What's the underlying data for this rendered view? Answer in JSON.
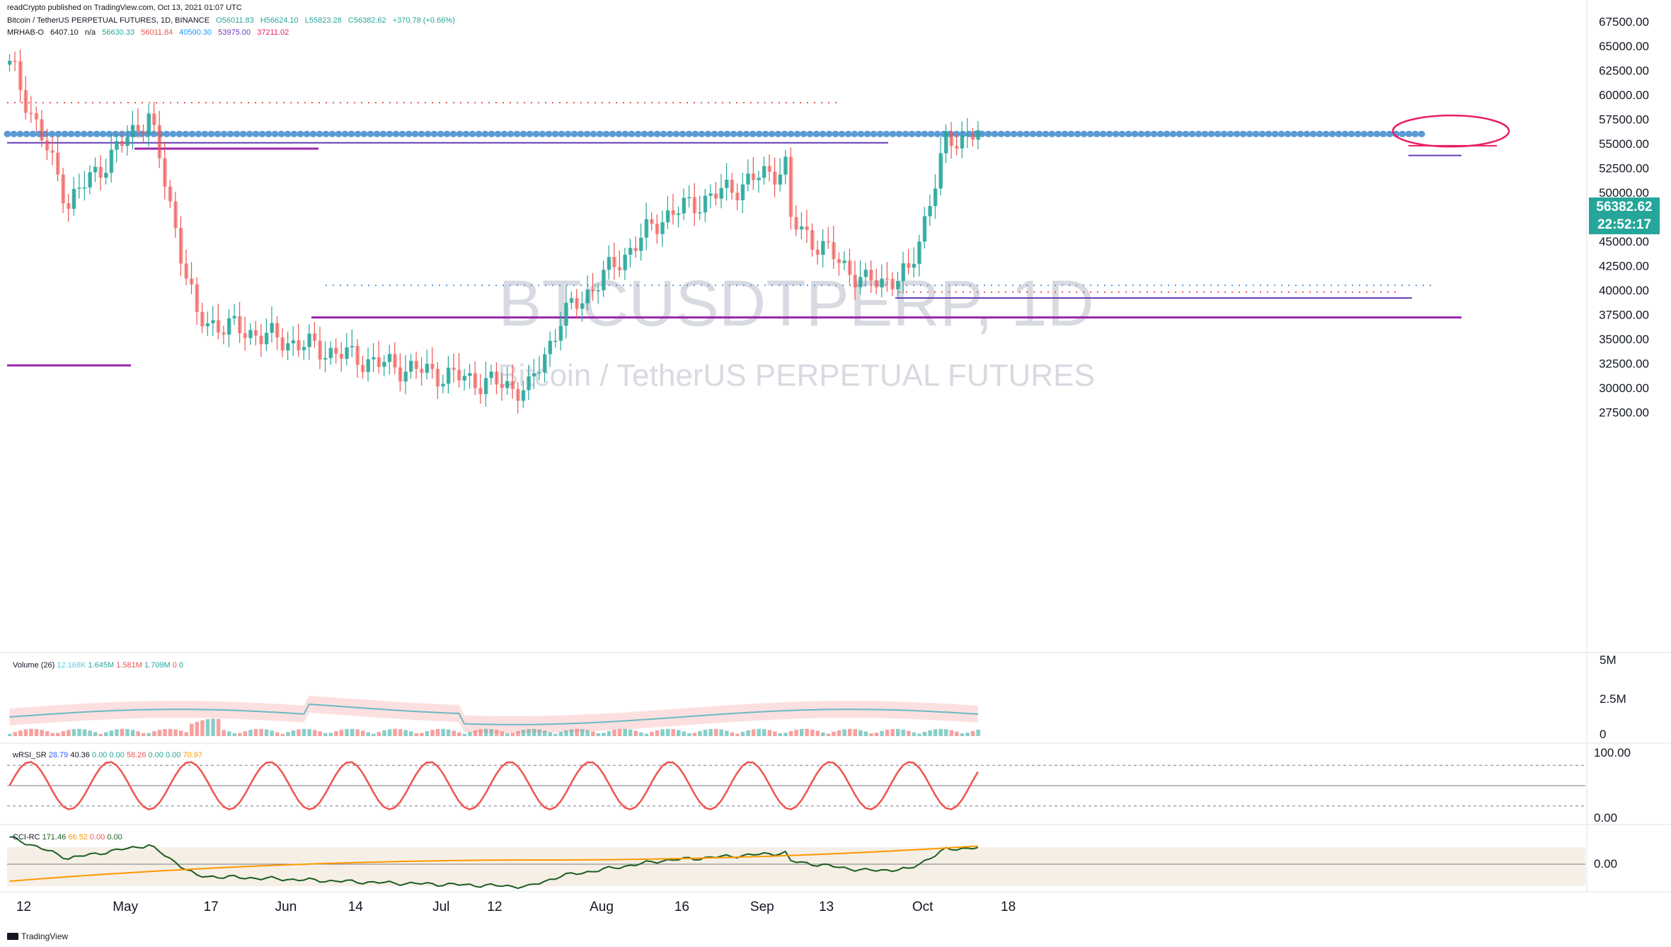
{
  "header": {
    "published": "readCrypto published on TradingView.com, Oct 13, 2021 01:07 UTC",
    "symbol_line": "Bitcoin / TetherUS PERPETUAL FUTURES, 1D, BINANCE",
    "ohlc": {
      "o": "O56011.83",
      "h": "H56624.10",
      "l": "L55823.28",
      "c": "C56382.62",
      "chg": "+370.78 (+0.66%)"
    },
    "indicator": {
      "name": "MRHAB-O",
      "v1": "6407.10",
      "v2": "n/a",
      "v3": "56630.33",
      "v4": "56011.84",
      "v5": "40500.30",
      "v6": "53975.00",
      "v7": "37211.02"
    }
  },
  "watermark": {
    "ticker": "BTCUSDTPERP, 1D",
    "name": "Bitcoin / TetherUS PERPETUAL FUTURES"
  },
  "price_label": {
    "price": "56382.62",
    "countdown": "22:52:17"
  },
  "panels": {
    "volume": {
      "name": "Volume (26)",
      "v1": "12.168K",
      "v2": "1.645M",
      "v3": "1.581M",
      "v4": "1.709M",
      "v5": "0",
      "v6": "0",
      "ticks": [
        "5M",
        "2.5M",
        "0"
      ]
    },
    "rsi": {
      "name": "wRSI_SR",
      "v1": "28.79",
      "v2": "40.36",
      "v3": "0.00",
      "v4": "0.00",
      "v5": "58.26",
      "v6": "0.00",
      "v7": "0.00",
      "v8": "70.97",
      "ticks": [
        "100.00",
        "0.00"
      ]
    },
    "cci": {
      "name": "CCI-RC",
      "v1": "171.46",
      "v2": "66.52",
      "v3": "0.00",
      "v4": "0.00",
      "ticks": [
        "0.00"
      ]
    }
  },
  "footer": {
    "brand": "TradingView"
  },
  "colors": {
    "up": "#26a69a",
    "down": "#ef5350",
    "dots": "#5b9bd5",
    "support": "#9c27b0",
    "purple_line": "#673ab7",
    "price_bg": "#26a69a",
    "circle": "#e91e63"
  },
  "chart_data": {
    "type": "candlestick",
    "title": "BTCUSDTPERP, 1D",
    "x_tick_labels": [
      "12",
      "May",
      "17",
      "Jun",
      "14",
      "Jul",
      "12",
      "Aug",
      "16",
      "Sep",
      "13",
      "Oct",
      "18"
    ],
    "y_ticks": [
      "67500.00",
      "65000.00",
      "62500.00",
      "60000.00",
      "57500.00",
      "55000.00",
      "52500.00",
      "50000.00",
      "47500.00",
      "45000.00",
      "42500.00",
      "40000.00",
      "37500.00",
      "35000.00",
      "32500.00",
      "30000.00",
      "27500.00"
    ],
    "ylim": [
      25500,
      69000
    ],
    "series": [
      {
        "name": "BTCUSDTPERP",
        "candles": []
      }
    ],
    "levels": [
      {
        "price": 56000,
        "style": "dotted",
        "color": "#5b9bd5"
      },
      {
        "price": 55100,
        "style": "solid",
        "color": "#673ab7"
      },
      {
        "price": 37210,
        "style": "solid",
        "color": "#9c27b0"
      },
      {
        "price": 39200,
        "style": "solid",
        "color": "#673ab7"
      },
      {
        "price": 40500,
        "style": "dotted",
        "color": "#5b9bd5"
      }
    ],
    "key_points": [
      {
        "date": "Apr 14",
        "close": 63500
      },
      {
        "date": "Apr 25",
        "close": 49000
      },
      {
        "date": "May 10",
        "close": 58000
      },
      {
        "date": "May 19",
        "close": 37000
      },
      {
        "date": "Jun 22",
        "close": 32500
      },
      {
        "date": "Jul 20",
        "close": 29800
      },
      {
        "date": "Jul 26",
        "close": 37000
      },
      {
        "date": "Aug 14",
        "close": 47500
      },
      {
        "date": "Sep 6",
        "close": 52700
      },
      {
        "date": "Sep 7",
        "close": 47000
      },
      {
        "date": "Sep 21",
        "close": 40700
      },
      {
        "date": "Sep 29",
        "close": 41500
      },
      {
        "date": "Oct 6",
        "close": 55000
      },
      {
        "date": "Oct 12",
        "close": 56382.62
      }
    ]
  }
}
